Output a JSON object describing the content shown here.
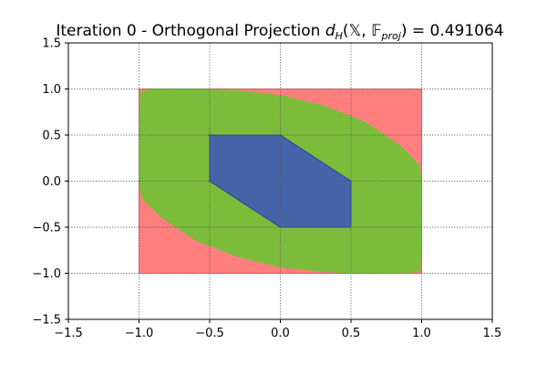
{
  "chart_data": {
    "type": "area",
    "title": {
      "prefix": "Iteration 0 - Orthogonal Projection ",
      "math_d": "d",
      "math_sub_H": "H",
      "math_args_open": "(",
      "math_X": "𝕏",
      "math_comma": ", ",
      "math_F": "𝔽",
      "math_sub_proj": "proj",
      "math_close": ")",
      "equals_value": " = 0.491064"
    },
    "xlabel": "",
    "ylabel": "",
    "xlim": [
      -1.5,
      1.5
    ],
    "ylim": [
      -1.5,
      1.5
    ],
    "xticks": [
      -1.5,
      -1.0,
      -0.5,
      0.0,
      0.5,
      1.0,
      1.5
    ],
    "yticks": [
      -1.5,
      -1.0,
      -0.5,
      0.0,
      0.5,
      1.0,
      1.5
    ],
    "xtick_labels": [
      "−1.5",
      "−1.0",
      "−0.5",
      "0.0",
      "0.5",
      "1.0",
      "1.5"
    ],
    "ytick_labels": [
      "−1.5",
      "−1.0",
      "−0.5",
      "0.0",
      "0.5",
      "1.0",
      "1.5"
    ],
    "grid": true,
    "regions": [
      {
        "id": "outer-box",
        "fill": "#ff7f7f",
        "stroke": "#ff6b6b",
        "points": [
          [
            -1.0,
            -1.0
          ],
          [
            1.0,
            -1.0
          ],
          [
            1.0,
            1.0
          ],
          [
            -1.0,
            1.0
          ]
        ]
      },
      {
        "id": "projected-set",
        "fill": "#7bbd3a",
        "stroke": "#7bbd3a",
        "points": [
          [
            -1.0,
            0.0
          ],
          [
            -1.0,
            0.5
          ],
          [
            -0.99,
            0.97
          ],
          [
            -0.9,
            1.0
          ],
          [
            -0.6,
            1.0
          ],
          [
            -0.3,
            0.98
          ],
          [
            0.0,
            0.93
          ],
          [
            0.3,
            0.82
          ],
          [
            0.6,
            0.64
          ],
          [
            0.85,
            0.38
          ],
          [
            0.98,
            0.18
          ],
          [
            1.0,
            0.0
          ],
          [
            1.0,
            -0.5
          ],
          [
            0.99,
            -0.97
          ],
          [
            0.9,
            -1.0
          ],
          [
            0.6,
            -1.0
          ],
          [
            0.3,
            -0.98
          ],
          [
            0.0,
            -0.93
          ],
          [
            -0.3,
            -0.82
          ],
          [
            -0.6,
            -0.64
          ],
          [
            -0.85,
            -0.38
          ],
          [
            -0.98,
            -0.18
          ]
        ]
      },
      {
        "id": "inner-hexagon",
        "fill": "#4664aa",
        "stroke": "#1f3f9e",
        "points": [
          [
            -0.5,
            0.0
          ],
          [
            -0.5,
            0.5
          ],
          [
            0.0,
            0.5
          ],
          [
            0.5,
            0.0
          ],
          [
            0.5,
            -0.5
          ],
          [
            0.0,
            -0.5
          ]
        ]
      }
    ],
    "colors": {
      "outer_box": "#ff7f7f",
      "projected_set": "#7bbd3a",
      "inner_hexagon": "#4664aa",
      "grid": "#555555",
      "axes": "#000000"
    }
  }
}
